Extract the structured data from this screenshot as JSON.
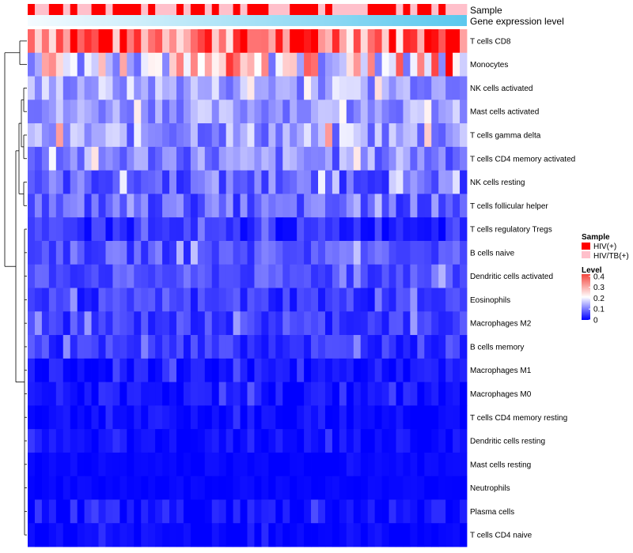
{
  "chart_data": {
    "type": "heatmap",
    "annotation_labels": [
      "Sample",
      "Gene expression level"
    ],
    "rows": [
      "T cells CD8",
      "Monocytes",
      "NK cells activated",
      "Mast cells activated",
      "T cells gamma delta",
      "T cells CD4 memory activated",
      "NK cells resting",
      "T cells follicular helper",
      "T cells regulatory  Tregs",
      "B cells naive",
      "Dendritic cells activated",
      "Eosinophils",
      "Macrophages M2",
      "B cells memory",
      "Macrophages M1",
      "Macrophages M0",
      "T cells CD4 memory resting",
      "Dendritic cells resting",
      "Mast cells resting",
      "Neutrophils",
      "Plasma cells",
      "T cells CD4 naive"
    ],
    "sample_groups": "10011010011011110100010110100101110001111010000011110101101000",
    "row_means": [
      0.34,
      0.21,
      0.14,
      0.13,
      0.13,
      0.11,
      0.08,
      0.08,
      0.035,
      0.07,
      0.065,
      0.045,
      0.05,
      0.045,
      0.015,
      0.015,
      0.01,
      0.01,
      0.005,
      0.004,
      0.015,
      0.005
    ],
    "row_spread": [
      0.12,
      0.13,
      0.06,
      0.05,
      0.07,
      0.06,
      0.05,
      0.05,
      0.035,
      0.04,
      0.035,
      0.035,
      0.035,
      0.035,
      0.025,
      0.025,
      0.02,
      0.02,
      0.01,
      0.008,
      0.03,
      0.015
    ],
    "n_samples": 62,
    "legend": {
      "sample_title": "Sample",
      "sample_entries": [
        {
          "label": "HIV(+)",
          "color": "#ff0000"
        },
        {
          "label": "HIV/TB(+)",
          "color": "#ffc0cb"
        }
      ],
      "level_title": "Level",
      "level_ticks": [
        "0.4",
        "0.3",
        "0.2",
        "0.1",
        "0"
      ],
      "level_tick_values": [
        0.4,
        0.3,
        0.2,
        0.1,
        0.0
      ],
      "level_range": [
        0,
        0.42
      ]
    },
    "colors": {
      "low": "#0000ff",
      "mid": "#ffffff",
      "high": "#ff0000",
      "expression_bar": "#5bc8ee",
      "dendrogram": "#000000"
    }
  }
}
